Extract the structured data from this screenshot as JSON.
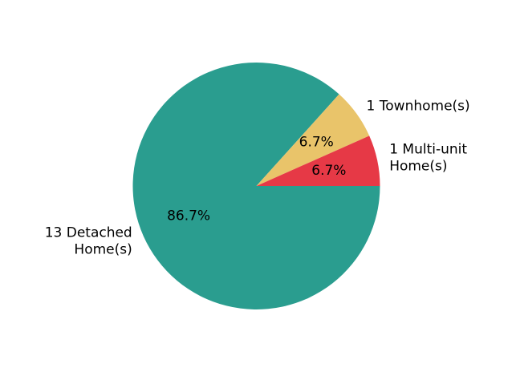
{
  "chart_data": {
    "type": "pie",
    "title": "",
    "slices": [
      {
        "label_lines": [
          "13 Detached",
          "Home(s)"
        ],
        "value": 13,
        "percent_label": "86.7%",
        "color": "#2a9d8f"
      },
      {
        "label_lines": [
          "1 Townhome(s)"
        ],
        "value": 1,
        "percent_label": "6.7%",
        "color": "#e9c46a"
      },
      {
        "label_lines": [
          "1 Multi-unit",
          "Home(s)"
        ],
        "value": 1,
        "percent_label": "6.7%",
        "color": "#e63946"
      }
    ],
    "start_angle_deg": 0,
    "direction": "clockwise"
  }
}
